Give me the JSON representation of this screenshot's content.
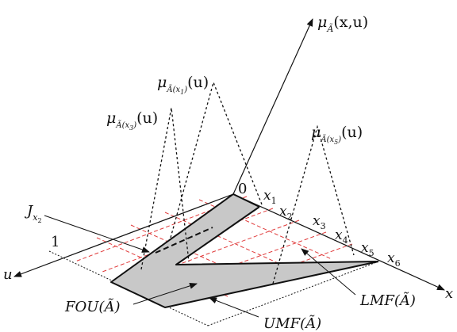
{
  "figure": {
    "mu_full": {
      "mu": "μ",
      "sub": "Ã",
      "args": "(x,u)"
    },
    "mu_x1": {
      "mu": "μ",
      "sub": "Ã(x",
      "subsub": "1",
      "close": ")",
      "args": "(u)"
    },
    "mu_x3": {
      "mu": "μ",
      "sub": "Ã(x",
      "subsub": "3",
      "close": ")",
      "args": "(u)"
    },
    "mu_x5": {
      "mu": "μ",
      "sub": "Ã(x",
      "subsub": "5",
      "close": ")",
      "args": "(u)"
    },
    "origin_label": "0",
    "u_one_label": "1",
    "u_axis_label": "u",
    "x_axis_label": "x",
    "x_ticks": [
      {
        "base": "x",
        "sub": "1"
      },
      {
        "base": "x",
        "sub": "2"
      },
      {
        "base": "x",
        "sub": "3"
      },
      {
        "base": "x",
        "sub": "4"
      },
      {
        "base": "x",
        "sub": "5"
      },
      {
        "base": "x",
        "sub": "6"
      }
    ],
    "j_label": {
      "base": "J",
      "sub": "x",
      "subsub": "2"
    },
    "fou_label": "FOU(Ã)",
    "umf_label": "UMF(Ã)",
    "lmf_label": "LMF(Ã)",
    "colors": {
      "fou_fill": "#c8c8c8",
      "grid": "#e03a3a",
      "ink": "#111111"
    }
  }
}
